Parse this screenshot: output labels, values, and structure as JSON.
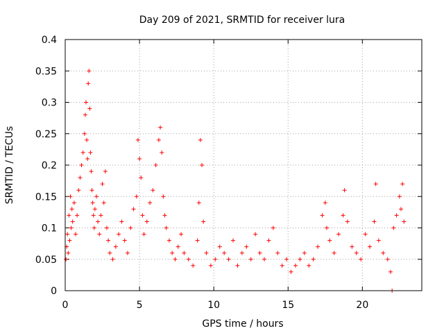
{
  "chart_data": {
    "type": "scatter",
    "title": "Day 209 of 2021, SRMTID for receiver lura",
    "xlabel": "GPS time / hours",
    "ylabel": "SRMTID / TECUs",
    "xlim": [
      0,
      24
    ],
    "ylim": [
      0,
      0.4
    ],
    "x_ticks": [
      0,
      5,
      10,
      15,
      20
    ],
    "y_ticks": [
      0,
      0.05,
      0.1,
      0.15,
      0.2,
      0.25,
      0.3,
      0.35,
      0.4
    ],
    "x_tick_labels": [
      "0",
      "5",
      "10",
      "15",
      "20"
    ],
    "y_tick_labels": [
      "0",
      "0.05",
      "0.1",
      "0.15",
      "0.2",
      "0.25",
      "0.3",
      "0.35",
      "0.4"
    ],
    "grid": true,
    "marker": "+",
    "color": "#ff0000",
    "series": [
      {
        "name": "SRMTID",
        "x": [
          0.05,
          0.1,
          0.15,
          0.2,
          0.25,
          0.3,
          0.35,
          0.4,
          0.45,
          0.5,
          0.6,
          0.7,
          0.8,
          0.9,
          1.0,
          1.1,
          1.2,
          1.3,
          1.35,
          1.4,
          1.45,
          1.5,
          1.55,
          1.6,
          1.65,
          1.7,
          1.75,
          1.8,
          1.85,
          1.9,
          1.95,
          2.0,
          2.1,
          2.2,
          2.3,
          2.4,
          2.5,
          2.6,
          2.7,
          2.8,
          2.9,
          3.0,
          3.2,
          3.4,
          3.6,
          3.8,
          4.0,
          4.2,
          4.4,
          4.6,
          4.8,
          4.9,
          5.0,
          5.1,
          5.2,
          5.3,
          5.5,
          5.7,
          5.9,
          6.1,
          6.3,
          6.4,
          6.5,
          6.6,
          6.7,
          6.8,
          7.0,
          7.2,
          7.4,
          7.6,
          7.8,
          8.0,
          8.3,
          8.6,
          8.9,
          9.0,
          9.1,
          9.2,
          9.3,
          9.5,
          9.8,
          10.1,
          10.4,
          10.7,
          11.0,
          11.3,
          11.6,
          11.9,
          12.2,
          12.5,
          12.8,
          13.1,
          13.4,
          13.7,
          14.0,
          14.3,
          14.6,
          14.9,
          15.2,
          15.5,
          15.8,
          16.1,
          16.4,
          16.7,
          17.0,
          17.3,
          17.5,
          17.6,
          17.8,
          18.1,
          18.4,
          18.7,
          18.8,
          19.0,
          19.3,
          19.6,
          19.9,
          20.2,
          20.5,
          20.8,
          20.9,
          21.1,
          21.4,
          21.7,
          21.9,
          22.0,
          22.1,
          22.3,
          22.5,
          22.6,
          22.7,
          22.8
        ],
        "y": [
          0.05,
          0.07,
          0.09,
          0.06,
          0.12,
          0.08,
          0.15,
          0.1,
          0.13,
          0.11,
          0.14,
          0.09,
          0.12,
          0.16,
          0.18,
          0.2,
          0.22,
          0.25,
          0.28,
          0.3,
          0.24,
          0.21,
          0.33,
          0.35,
          0.29,
          0.22,
          0.19,
          0.16,
          0.14,
          0.12,
          0.1,
          0.13,
          0.15,
          0.11,
          0.09,
          0.12,
          0.17,
          0.14,
          0.19,
          0.1,
          0.08,
          0.06,
          0.05,
          0.07,
          0.09,
          0.11,
          0.08,
          0.06,
          0.1,
          0.13,
          0.15,
          0.24,
          0.21,
          0.18,
          0.12,
          0.09,
          0.11,
          0.14,
          0.16,
          0.2,
          0.24,
          0.26,
          0.22,
          0.15,
          0.12,
          0.1,
          0.08,
          0.06,
          0.05,
          0.07,
          0.09,
          0.06,
          0.05,
          0.04,
          0.08,
          0.14,
          0.24,
          0.2,
          0.11,
          0.06,
          0.04,
          0.05,
          0.07,
          0.06,
          0.05,
          0.08,
          0.04,
          0.06,
          0.07,
          0.05,
          0.09,
          0.06,
          0.05,
          0.08,
          0.1,
          0.06,
          0.04,
          0.05,
          0.03,
          0.04,
          0.05,
          0.06,
          0.04,
          0.05,
          0.07,
          0.12,
          0.14,
          0.1,
          0.08,
          0.06,
          0.09,
          0.12,
          0.16,
          0.11,
          0.07,
          0.06,
          0.05,
          0.09,
          0.07,
          0.11,
          0.17,
          0.08,
          0.06,
          0.05,
          0.03,
          0.0,
          0.1,
          0.12,
          0.15,
          0.13,
          0.17,
          0.11
        ]
      }
    ]
  }
}
